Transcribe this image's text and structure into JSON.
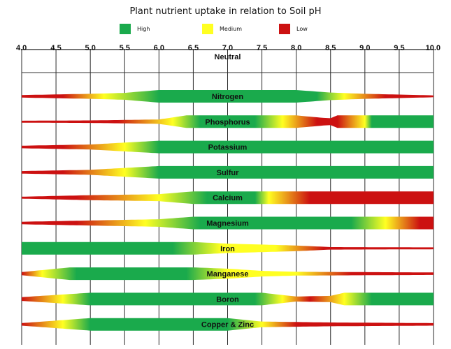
{
  "chart_data": {
    "type": "area",
    "title": "Plant nutrient uptake in relation to Soil pH",
    "xlabel": "",
    "ylabel": "",
    "xlim": [
      4.0,
      10.0
    ],
    "x_ticks": [
      "4.0",
      "4.5",
      "5.0",
      "5.5",
      "6.0",
      "6.5",
      "7.0",
      "7.5",
      "8.0",
      "8.5",
      "9.0",
      "9.5",
      "10.0"
    ],
    "annotation": "Neutral",
    "annotation_x": 7.0,
    "legend_position": "top",
    "legend": [
      {
        "name": "High",
        "color": "#1aaa4c"
      },
      {
        "name": "Medium",
        "color": "#ffff22"
      },
      {
        "name": "Low",
        "color": "#cc1111"
      }
    ],
    "grid": true,
    "series": [
      {
        "name": "Nitrogen",
        "width": [
          [
            4.0,
            0.2
          ],
          [
            5.0,
            0.4
          ],
          [
            5.5,
            0.55
          ],
          [
            6.0,
            1.0
          ],
          [
            7.0,
            1.0
          ],
          [
            8.0,
            1.0
          ],
          [
            8.5,
            0.6
          ],
          [
            9.0,
            0.4
          ],
          [
            10.0,
            0.15
          ]
        ],
        "level": [
          [
            4.0,
            "low"
          ],
          [
            4.6,
            "low"
          ],
          [
            5.2,
            "medium"
          ],
          [
            6.0,
            "high"
          ],
          [
            8.3,
            "high"
          ],
          [
            8.7,
            "medium"
          ],
          [
            9.3,
            "low"
          ],
          [
            10.0,
            "low"
          ]
        ]
      },
      {
        "name": "Phosphorus",
        "width": [
          [
            4.0,
            0.15
          ],
          [
            5.0,
            0.2
          ],
          [
            6.0,
            0.35
          ],
          [
            6.4,
            1.0
          ],
          [
            7.5,
            1.0
          ],
          [
            8.0,
            1.0
          ],
          [
            8.4,
            0.6
          ],
          [
            8.5,
            0.55
          ],
          [
            8.6,
            1.0
          ],
          [
            10.0,
            1.0
          ]
        ],
        "level": [
          [
            4.0,
            "low"
          ],
          [
            5.4,
            "low"
          ],
          [
            6.2,
            "medium"
          ],
          [
            6.6,
            "high"
          ],
          [
            7.4,
            "high"
          ],
          [
            7.8,
            "medium"
          ],
          [
            8.3,
            "low"
          ],
          [
            8.6,
            "low"
          ],
          [
            9.0,
            "medium"
          ],
          [
            9.1,
            "high"
          ],
          [
            10.0,
            "high"
          ]
        ]
      },
      {
        "name": "Potassium",
        "width": [
          [
            4.0,
            0.2
          ],
          [
            5.0,
            0.4
          ],
          [
            6.0,
            1.0
          ],
          [
            10.0,
            1.0
          ]
        ],
        "level": [
          [
            4.0,
            "low"
          ],
          [
            4.6,
            "low"
          ],
          [
            5.5,
            "medium"
          ],
          [
            6.0,
            "high"
          ],
          [
            10.0,
            "high"
          ]
        ]
      },
      {
        "name": "Sulfur",
        "width": [
          [
            4.0,
            0.2
          ],
          [
            5.0,
            0.4
          ],
          [
            6.0,
            1.0
          ],
          [
            10.0,
            1.0
          ]
        ],
        "level": [
          [
            4.0,
            "low"
          ],
          [
            4.6,
            "low"
          ],
          [
            5.5,
            "medium"
          ],
          [
            6.0,
            "high"
          ],
          [
            10.0,
            "high"
          ]
        ]
      },
      {
        "name": "Calcium",
        "width": [
          [
            4.0,
            0.15
          ],
          [
            5.0,
            0.4
          ],
          [
            6.0,
            0.55
          ],
          [
            6.5,
            1.0
          ],
          [
            10.0,
            1.0
          ]
        ],
        "level": [
          [
            4.0,
            "low"
          ],
          [
            4.8,
            "low"
          ],
          [
            6.0,
            "medium"
          ],
          [
            6.7,
            "high"
          ],
          [
            7.4,
            "high"
          ],
          [
            7.6,
            "medium"
          ],
          [
            8.2,
            "low"
          ],
          [
            10.0,
            "low"
          ]
        ]
      },
      {
        "name": "Magnesium",
        "width": [
          [
            4.0,
            0.2
          ],
          [
            5.0,
            0.4
          ],
          [
            6.0,
            0.6
          ],
          [
            6.5,
            1.0
          ],
          [
            10.0,
            1.0
          ]
        ],
        "level": [
          [
            4.0,
            "low"
          ],
          [
            4.8,
            "low"
          ],
          [
            5.8,
            "medium"
          ],
          [
            6.6,
            "high"
          ],
          [
            8.8,
            "high"
          ],
          [
            9.3,
            "medium"
          ],
          [
            9.8,
            "low"
          ],
          [
            10.0,
            "low"
          ]
        ]
      },
      {
        "name": "Iron",
        "width": [
          [
            4.0,
            1.0
          ],
          [
            6.0,
            1.0
          ],
          [
            6.5,
            1.0
          ],
          [
            7.0,
            0.75
          ],
          [
            8.0,
            0.45
          ],
          [
            8.5,
            0.2
          ],
          [
            10.0,
            0.15
          ]
        ],
        "level": [
          [
            4.0,
            "high"
          ],
          [
            6.2,
            "high"
          ],
          [
            6.9,
            "medium"
          ],
          [
            7.7,
            "medium"
          ],
          [
            8.4,
            "low"
          ],
          [
            10.0,
            "low"
          ]
        ]
      },
      {
        "name": "Manganese",
        "width": [
          [
            4.0,
            0.25
          ],
          [
            4.7,
            1.0
          ],
          [
            6.5,
            1.0
          ],
          [
            7.0,
            0.8
          ],
          [
            7.5,
            0.45
          ],
          [
            8.0,
            0.3
          ],
          [
            10.0,
            0.2
          ]
        ],
        "level": [
          [
            4.0,
            "low"
          ],
          [
            4.3,
            "medium"
          ],
          [
            4.8,
            "high"
          ],
          [
            6.4,
            "high"
          ],
          [
            7.0,
            "medium"
          ],
          [
            8.0,
            "medium"
          ],
          [
            8.8,
            "low"
          ],
          [
            10.0,
            "low"
          ]
        ]
      },
      {
        "name": "Boron",
        "width": [
          [
            4.0,
            0.3
          ],
          [
            5.0,
            1.0
          ],
          [
            7.5,
            1.0
          ],
          [
            8.0,
            0.4
          ],
          [
            8.5,
            0.5
          ],
          [
            8.7,
            1.0
          ],
          [
            10.0,
            1.0
          ]
        ],
        "level": [
          [
            4.0,
            "low"
          ],
          [
            4.6,
            "medium"
          ],
          [
            5.0,
            "high"
          ],
          [
            7.4,
            "high"
          ],
          [
            7.8,
            "medium"
          ],
          [
            8.2,
            "low"
          ],
          [
            8.7,
            "medium"
          ],
          [
            9.1,
            "high"
          ],
          [
            10.0,
            "high"
          ]
        ]
      },
      {
        "name": "Copper & Zinc",
        "width": [
          [
            4.0,
            0.2
          ],
          [
            5.0,
            1.0
          ],
          [
            7.0,
            1.0
          ],
          [
            7.5,
            0.45
          ],
          [
            8.5,
            0.3
          ],
          [
            10.0,
            0.2
          ]
        ],
        "level": [
          [
            4.0,
            "low"
          ],
          [
            4.6,
            "medium"
          ],
          [
            5.0,
            "high"
          ],
          [
            7.0,
            "high"
          ],
          [
            7.5,
            "medium"
          ],
          [
            8.0,
            "low"
          ],
          [
            10.0,
            "low"
          ]
        ]
      }
    ]
  }
}
